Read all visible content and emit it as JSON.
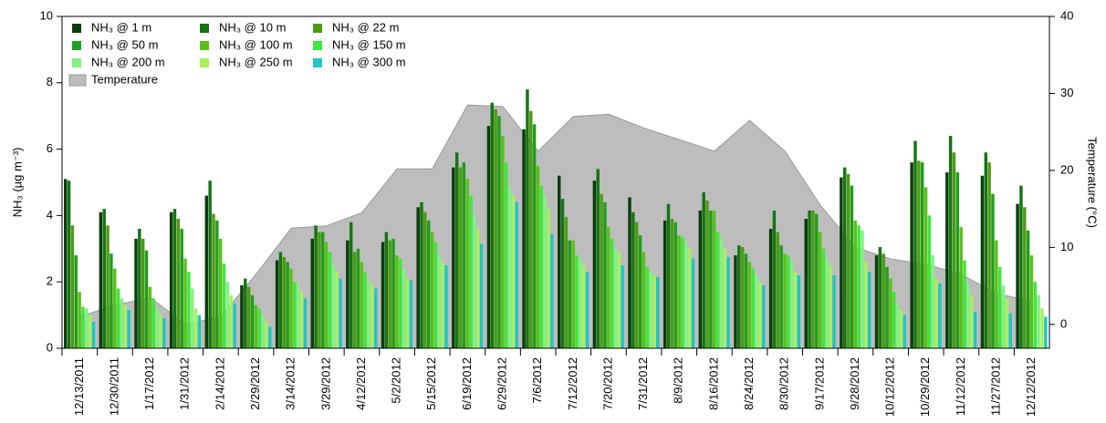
{
  "chart_data": {
    "type": "bar",
    "y_label": "NH₃ (µg m⁻³)",
    "y2_label": "Temperature (°C)",
    "categories": [
      "12/13/2011",
      "12/30/2011",
      "1/17/2012",
      "1/31/2012",
      "2/14/2012",
      "2/29/2012",
      "3/14/2012",
      "3/29/2012",
      "4/12/2012",
      "5/2/2012",
      "5/15/2012",
      "6/19/2012",
      "6/29/2012",
      "7/6/2012",
      "7/12/2012",
      "7/20/2012",
      "7/31/2012",
      "8/9/2012",
      "8/16/2012",
      "8/24/2012",
      "8/30/2012",
      "9/17/2012",
      "9/28/2012",
      "10/12/2012",
      "10/29/2012",
      "11/12/2012",
      "11/27/2012",
      "12/12/2012"
    ],
    "ylim": [
      0,
      10
    ],
    "yticks": [
      0,
      2,
      4,
      6,
      8,
      10
    ],
    "y2lim": [
      -3.1,
      40
    ],
    "y2ticks": [
      0,
      10,
      20,
      30,
      40
    ],
    "legend": "upper left",
    "series": [
      {
        "name": "NH₃ @ 1 m",
        "color": "#0b3d0b",
        "values": [
          5.1,
          4.1,
          3.3,
          4.1,
          4.6,
          1.9,
          2.65,
          3.3,
          3.25,
          3.2,
          4.25,
          5.45,
          6.7,
          6.6,
          5.2,
          5.05,
          4.55,
          3.85,
          4.15,
          2.8,
          3.6,
          3.9,
          5.15,
          2.8,
          5.6,
          5.3,
          5.2,
          4.35
        ]
      },
      {
        "name": "NH₃ @ 10 m",
        "color": "#147514",
        "values": [
          5.05,
          4.2,
          3.6,
          4.2,
          5.05,
          2.1,
          2.9,
          3.7,
          3.8,
          3.5,
          4.4,
          5.9,
          7.4,
          7.8,
          4.5,
          5.4,
          4.1,
          4.35,
          4.7,
          3.1,
          4.15,
          4.15,
          5.45,
          3.05,
          6.25,
          6.4,
          5.9,
          4.9
        ]
      },
      {
        "name": "NH₃ @ 22 m",
        "color": "#4f9a12",
        "values": [
          3.7,
          3.7,
          3.3,
          3.9,
          4.05,
          1.85,
          2.75,
          3.5,
          2.9,
          3.25,
          4.1,
          5.45,
          7.2,
          7.15,
          3.95,
          4.65,
          3.8,
          3.9,
          4.45,
          3.05,
          3.5,
          4.15,
          5.25,
          2.85,
          5.65,
          5.9,
          5.6,
          4.25
        ]
      },
      {
        "name": "NH₃ @ 50 m",
        "color": "#1f9e1f",
        "values": [
          2.8,
          2.85,
          2.95,
          3.6,
          3.85,
          1.6,
          2.6,
          3.5,
          3.0,
          3.3,
          3.85,
          5.6,
          7.0,
          6.75,
          3.25,
          4.4,
          3.4,
          3.8,
          4.15,
          2.85,
          3.1,
          4.05,
          4.9,
          2.45,
          5.6,
          5.3,
          4.65,
          3.55
        ]
      },
      {
        "name": "NH₃ @ 100 m",
        "color": "#5dbf18",
        "values": [
          1.7,
          2.4,
          1.85,
          2.7,
          3.3,
          1.3,
          2.4,
          3.2,
          2.6,
          2.8,
          3.5,
          5.1,
          6.4,
          5.5,
          3.25,
          3.65,
          2.9,
          3.4,
          4.15,
          2.6,
          2.85,
          3.5,
          3.85,
          2.1,
          4.85,
          3.65,
          3.25,
          2.8
        ]
      },
      {
        "name": "NH₃ @ 150 m",
        "color": "#3fe63f",
        "values": [
          1.25,
          1.8,
          1.5,
          2.3,
          2.55,
          1.2,
          2.0,
          2.9,
          2.3,
          2.7,
          3.2,
          4.6,
          5.6,
          4.9,
          2.8,
          3.3,
          2.45,
          3.35,
          3.5,
          2.4,
          2.8,
          3.0,
          3.7,
          1.7,
          4.0,
          2.65,
          2.45,
          2.0
        ]
      },
      {
        "name": "NH₃ @ 200 m",
        "color": "#85f085",
        "values": [
          1.2,
          1.5,
          1.2,
          1.8,
          2.0,
          1.0,
          1.9,
          2.5,
          2.0,
          2.4,
          2.8,
          4.0,
          4.8,
          4.6,
          2.7,
          3.0,
          2.3,
          3.2,
          3.3,
          2.2,
          2.6,
          2.7,
          3.55,
          1.35,
          2.8,
          1.95,
          1.9,
          1.6
        ]
      },
      {
        "name": "NH₃ @ 250 m",
        "color": "#a9f060",
        "values": [
          1.0,
          1.3,
          1.0,
          1.2,
          1.6,
          0.8,
          1.7,
          2.3,
          1.9,
          2.1,
          2.6,
          3.6,
          4.6,
          4.2,
          2.5,
          2.9,
          2.2,
          3.0,
          3.0,
          2.0,
          2.3,
          2.5,
          2.6,
          1.15,
          2.1,
          1.6,
          1.5,
          1.2
        ]
      },
      {
        "name": "NH₃ @ 300 m",
        "color": "#22c4c4",
        "values": [
          0.8,
          1.15,
          0.9,
          1.0,
          1.35,
          0.65,
          1.5,
          2.1,
          1.8,
          2.05,
          2.5,
          3.15,
          4.4,
          3.45,
          2.3,
          2.5,
          2.15,
          2.7,
          2.75,
          1.9,
          2.2,
          2.2,
          2.3,
          1.0,
          1.95,
          1.1,
          1.05,
          0.95
        ]
      },
      {
        "name": "Temperature",
        "color": "#bdbdbd",
        "type": "area",
        "axis": "y2",
        "values": [
          1,
          2.5,
          3.5,
          0,
          1,
          6.5,
          12.5,
          12.8,
          14.5,
          20.2,
          20.2,
          28.5,
          28.3,
          22.5,
          27,
          27.3,
          25.5,
          24,
          22.5,
          26.5,
          22.5,
          15.5,
          10,
          8.5,
          7.8,
          6.5,
          4,
          3
        ]
      }
    ]
  }
}
